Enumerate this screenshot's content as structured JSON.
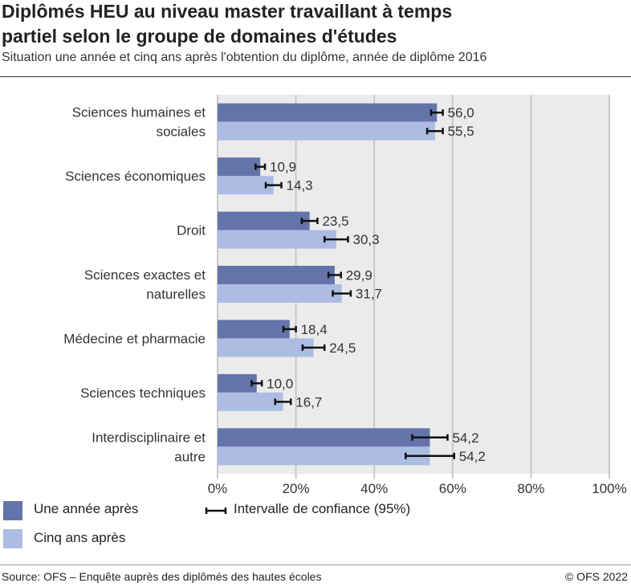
{
  "chart_data": {
    "type": "bar",
    "orientation": "horizontal",
    "title": "Diplômés HEU au niveau master travaillant à temps partiel selon le groupe de domaines d'études",
    "title_lines": [
      "Diplômés HEU au niveau master travaillant à temps",
      "partiel selon le groupe de domaines d'études"
    ],
    "subtitle": "Situation une année et cinq ans après l'obtention du diplôme, année de diplôme 2016",
    "categories": [
      [
        "Sciences humaines et",
        "sociales"
      ],
      [
        "Sciences économiques"
      ],
      [
        "Droit"
      ],
      [
        "Sciences exactes et",
        "naturelles"
      ],
      [
        "Médecine et pharmacie"
      ],
      [
        "Sciences techniques"
      ],
      [
        "Interdisciplinaire et",
        "autre"
      ]
    ],
    "series": [
      {
        "name": "Une année après",
        "color": "#6474ab",
        "values": [
          56.0,
          10.9,
          23.5,
          29.9,
          18.4,
          10.0,
          54.2
        ],
        "ci": [
          1.5,
          1.2,
          2.0,
          1.6,
          1.6,
          1.3,
          4.5
        ]
      },
      {
        "name": "Cinq ans après",
        "color": "#adbce2",
        "values": [
          55.5,
          14.3,
          30.3,
          31.7,
          24.5,
          16.7,
          54.2
        ],
        "ci": [
          2.0,
          2.0,
          3.0,
          2.3,
          2.8,
          2.0,
          6.2
        ]
      }
    ],
    "value_labels": [
      [
        "56,0",
        "10,9",
        "23,5",
        "29,9",
        "18,4",
        "10,0",
        "54,2"
      ],
      [
        "55,5",
        "14,3",
        "30,3",
        "31,7",
        "24,5",
        "16,7",
        "54,2"
      ]
    ],
    "xlim": [
      0,
      100
    ],
    "xticks": [
      0,
      20,
      40,
      60,
      80,
      100
    ],
    "xtick_labels": [
      "0%",
      "20%",
      "40%",
      "60%",
      "80%",
      "100%"
    ],
    "grid": true,
    "legend_ci": "Intervalle de confiance (95%)",
    "legend_position": "bottom-left"
  },
  "footer": {
    "source": "Source: OFS – Enquête auprès des diplômés des hautes écoles",
    "copyright": "© OFS 2022"
  }
}
